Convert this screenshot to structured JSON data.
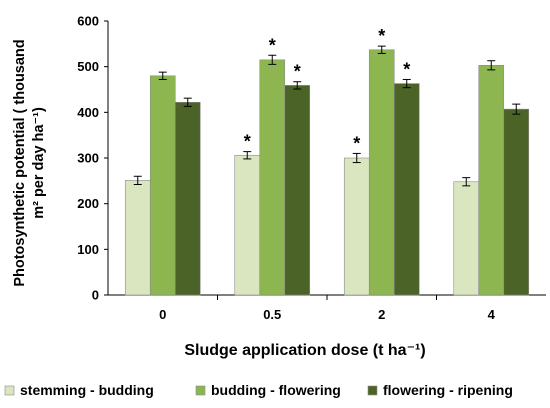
{
  "chart_data": {
    "type": "bar",
    "xlabel": "Sludge application dose (t ha⁻¹)",
    "ylabel_line1": "Photosynthetic potential ( thousand",
    "ylabel_line2": "m² per day ha⁻¹)",
    "categories": [
      "0",
      "0.5",
      "2",
      "4"
    ],
    "ylim": [
      0,
      600
    ],
    "yticks": [
      0,
      100,
      200,
      300,
      400,
      500,
      600
    ],
    "grid": false,
    "legend_position": "bottom",
    "series": [
      {
        "name": "stemming - budding",
        "color": "#d9e6c0",
        "values": [
          251,
          306,
          300,
          248
        ],
        "errors": [
          9,
          8,
          10,
          9
        ],
        "significant": [
          false,
          true,
          true,
          false
        ]
      },
      {
        "name": "budding - flowering",
        "color": "#8db650",
        "values": [
          480,
          515,
          537,
          503
        ],
        "errors": [
          8,
          10,
          8,
          10
        ],
        "significant": [
          false,
          true,
          true,
          false
        ]
      },
      {
        "name": "flowering - ripening",
        "color": "#4c6328",
        "values": [
          422,
          459,
          463,
          407
        ],
        "errors": [
          9,
          8,
          9,
          11
        ],
        "significant": [
          false,
          true,
          true,
          false
        ]
      }
    ],
    "significance_marker": "*"
  }
}
